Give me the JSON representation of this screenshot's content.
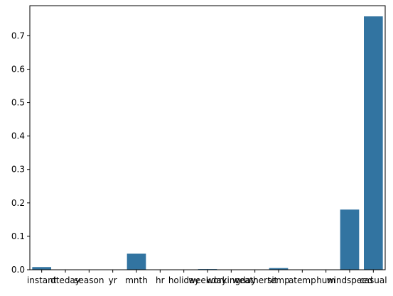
{
  "chart_data": {
    "type": "bar",
    "title": "",
    "xlabel": "",
    "ylabel": "",
    "ylim": [
      0,
      0.79
    ],
    "yticks": [
      0.0,
      0.1,
      0.2,
      0.3,
      0.4,
      0.5,
      0.6,
      0.7
    ],
    "ytick_labels": [
      "0.0",
      "0.1",
      "0.2",
      "0.3",
      "0.4",
      "0.5",
      "0.6",
      "0.7"
    ],
    "grid": false,
    "legend": "none",
    "bar_color": "#3274a1",
    "categories": [
      "instant",
      "dteday",
      "season",
      "yr",
      "mnth",
      "hr",
      "holiday",
      "weekday",
      "workingday",
      "weathersit",
      "temp",
      "atemp",
      "hum",
      "windspeed",
      "casual"
    ],
    "values": [
      0.008,
      0.0,
      0.0,
      0.0,
      0.048,
      0.0,
      0.0,
      0.002,
      0.0,
      0.0,
      0.005,
      0.0,
      0.0,
      0.18,
      0.758
    ]
  }
}
